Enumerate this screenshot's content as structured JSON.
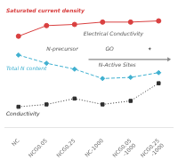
{
  "chart_data": {
    "type": "line",
    "categories": [
      "NC",
      "NCG0.05",
      "NCG0.25",
      "NC-1000",
      "NCG0.05\n-1000",
      "NCG0.25\n-1000"
    ],
    "series": [
      {
        "name": "Saturated current density",
        "color": "#d94040",
        "values": [
          0.78,
          0.87,
          0.88,
          0.9,
          0.9,
          0.91
        ],
        "marker": "circle",
        "line_style": "solid"
      },
      {
        "name": "Total N content",
        "color": "#40b0d0",
        "values": [
          0.62,
          0.55,
          0.5,
          0.42,
          0.43,
          0.47
        ],
        "marker": "diamond",
        "line_style": "dashed"
      },
      {
        "name": "Conductivity",
        "color": "#303030",
        "values": [
          0.18,
          0.2,
          0.25,
          0.2,
          0.23,
          0.38
        ],
        "marker": "square",
        "line_style": "dotted"
      }
    ],
    "ylim": [
      0.0,
      1.05
    ],
    "tick_labels": "x",
    "grid": false,
    "annotations": [
      "Electrical Conductivity",
      "N-Active Sites",
      "N-precursor",
      "GO",
      "✦"
    ]
  }
}
